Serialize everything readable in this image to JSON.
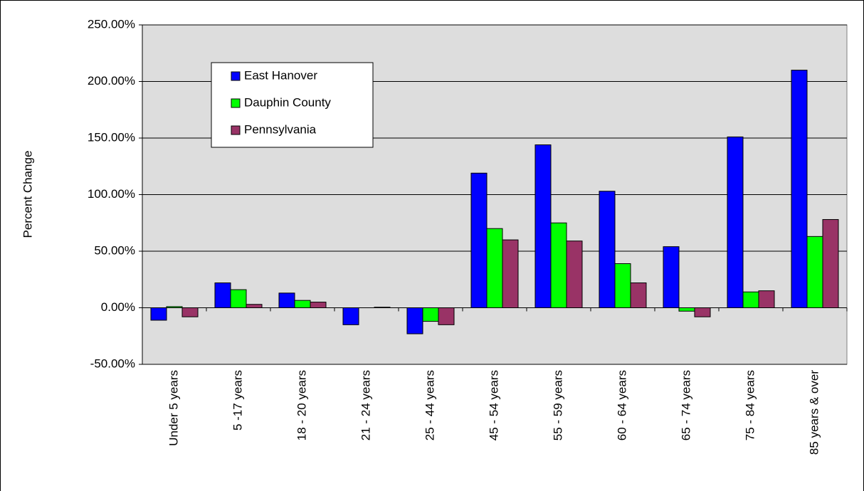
{
  "chart_data": {
    "type": "bar",
    "y_label": "Percent Change",
    "categories": [
      "Under 5 years",
      "5 -17 years",
      "18 - 20 years",
      "21 - 24 years",
      "25 - 44 years",
      "45 - 54 years",
      "55 - 59 years",
      "60 - 64 years",
      "65 - 74 years",
      "75 - 84 years",
      "85 years & over"
    ],
    "series": [
      {
        "name": "East Hanover",
        "color": "#0000ff",
        "values": [
          -11,
          22,
          13,
          -15,
          -23,
          119,
          144,
          103,
          54,
          151,
          210
        ]
      },
      {
        "name": "Dauphin County",
        "color": "#00ff00",
        "values": [
          1,
          16,
          6.5,
          0,
          -12,
          70,
          75,
          39,
          -3,
          14,
          63
        ]
      },
      {
        "name": "Pennsylvania",
        "color": "#993366",
        "values": [
          -8,
          3,
          5,
          0.5,
          -15,
          60,
          59,
          22,
          -8,
          15,
          78
        ]
      }
    ],
    "ylim": [
      -50,
      250
    ],
    "yticks": [
      {
        "value": -50,
        "label": "-50.00%"
      },
      {
        "value": 0,
        "label": "0.00%"
      },
      {
        "value": 50,
        "label": "50.00%"
      },
      {
        "value": 100,
        "label": "100.00%"
      },
      {
        "value": 150,
        "label": "150.00%"
      },
      {
        "value": 200,
        "label": "200.00%"
      },
      {
        "value": 250,
        "label": "250.00%"
      }
    ],
    "grid": true,
    "legend": "upper left"
  }
}
